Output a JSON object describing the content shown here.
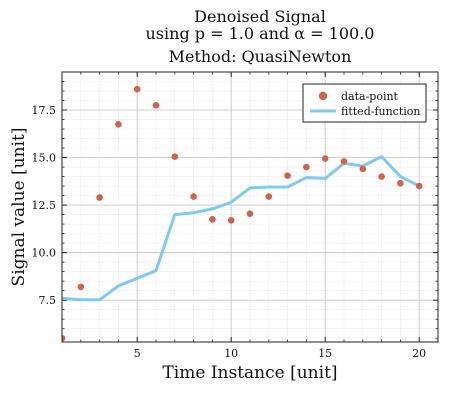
{
  "chart_data": {
    "type": "scatter+line",
    "title_lines": [
      "Denoised Signal",
      "using p = 1.0 and α = 100.0",
      "Method: QuasiNewton"
    ],
    "xlabel": "Time Instance [unit]",
    "ylabel": "Signal value [unit]",
    "xlim": [
      1,
      21
    ],
    "ylim": [
      5.3,
      19.5
    ],
    "x_ticks": [
      5,
      10,
      15,
      20
    ],
    "y_ticks": [
      7.5,
      10.0,
      12.5,
      15.0,
      17.5
    ],
    "x_tick_labels": [
      "5",
      "10",
      "15",
      "20"
    ],
    "y_tick_labels": [
      "7.5",
      "10.0",
      "12.5",
      "15.0",
      "17.5"
    ],
    "grid": true,
    "minor_grid": true,
    "legend_position": "top-right",
    "series": [
      {
        "name": "data-point",
        "kind": "scatter",
        "color": "#d0634a",
        "x": [
          1,
          2,
          3,
          4,
          5,
          6,
          7,
          8,
          9,
          10,
          11,
          12,
          13,
          14,
          15,
          16,
          17,
          18,
          19,
          20
        ],
        "y": [
          5.5,
          8.2,
          12.9,
          16.75,
          18.6,
          17.75,
          15.05,
          12.95,
          11.75,
          11.7,
          12.05,
          12.95,
          14.05,
          14.5,
          14.95,
          14.8,
          14.4,
          14.0,
          13.65,
          13.5
        ]
      },
      {
        "name": "fitted-function",
        "kind": "line",
        "color": "#82c8f0",
        "x": [
          1,
          2,
          3,
          4,
          5,
          6,
          7,
          8,
          9,
          10,
          11,
          12,
          13,
          14,
          15,
          16,
          17,
          18,
          19,
          20
        ],
        "y": [
          7.6,
          7.52,
          7.52,
          8.25,
          8.65,
          9.05,
          12.0,
          12.1,
          12.3,
          12.65,
          13.4,
          13.45,
          13.45,
          13.95,
          13.9,
          14.7,
          14.55,
          15.05,
          14.0,
          13.5
        ]
      }
    ]
  }
}
